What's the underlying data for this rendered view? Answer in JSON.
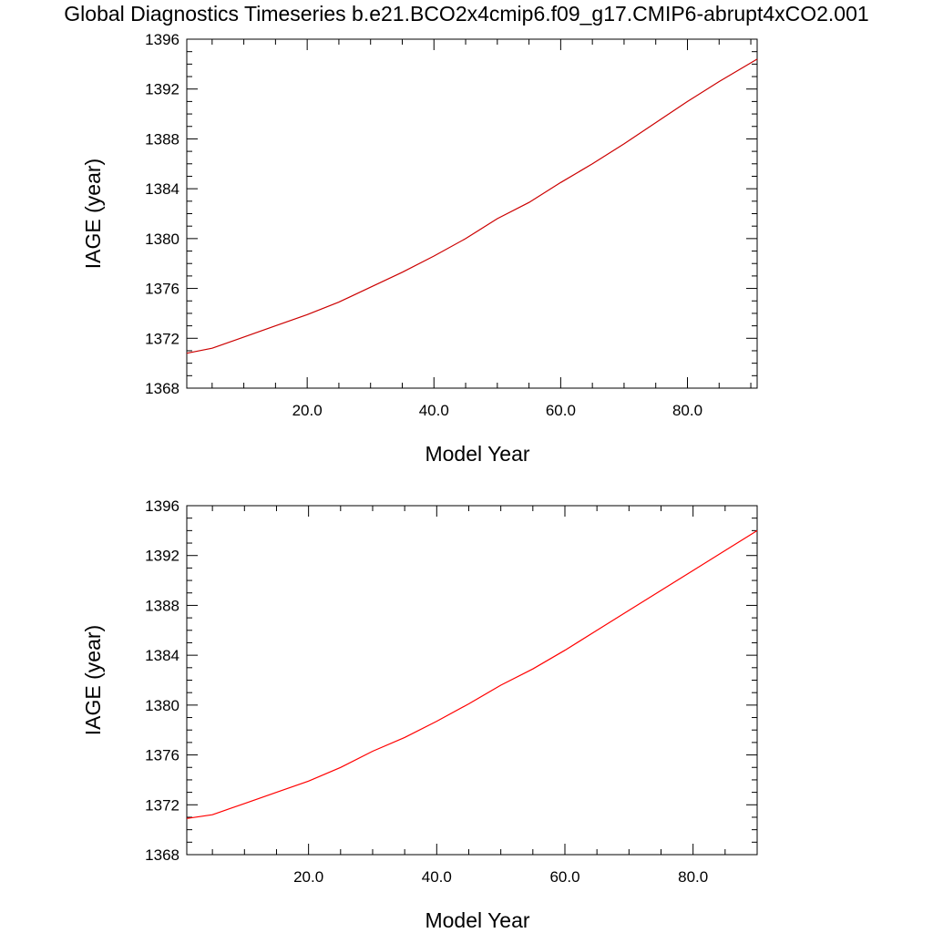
{
  "figure": {
    "title": "Global Diagnostics Timeseries b.e21.BCO2x4cmip6.f09_g17.CMIP6-abrupt4xCO2.001"
  },
  "chart_data": [
    {
      "type": "line",
      "xlabel": "Model Year",
      "ylabel": "IAGE (year)",
      "xlim": [
        1,
        91
      ],
      "ylim": [
        1368,
        1396
      ],
      "xticks": [
        20,
        40,
        60,
        80
      ],
      "xtick_labels": [
        "20.0",
        "40.0",
        "60.0",
        "80.0"
      ],
      "yticks": [
        1368,
        1372,
        1376,
        1380,
        1384,
        1388,
        1392,
        1396
      ],
      "ytick_labels": [
        "1368",
        "1372",
        "1376",
        "1380",
        "1384",
        "1388",
        "1392",
        "1396"
      ],
      "grid": false,
      "series": [
        {
          "color": "#cc0000",
          "x": [
            1,
            5,
            10,
            15,
            20,
            25,
            30,
            35,
            40,
            45,
            50,
            55,
            60,
            65,
            70,
            75,
            80,
            85,
            91
          ],
          "y": [
            1370.8,
            1371.2,
            1372.1,
            1373.0,
            1373.9,
            1374.9,
            1376.1,
            1377.3,
            1378.6,
            1380.0,
            1381.6,
            1382.9,
            1384.5,
            1386.0,
            1387.6,
            1389.3,
            1391.0,
            1392.6,
            1394.4
          ]
        }
      ]
    },
    {
      "type": "line",
      "xlabel": "Model Year",
      "ylabel": "IAGE (year)",
      "xlim": [
        1,
        90
      ],
      "ylim": [
        1368,
        1396
      ],
      "xticks": [
        20,
        40,
        60,
        80
      ],
      "xtick_labels": [
        "20.0",
        "40.0",
        "60.0",
        "80.0"
      ],
      "yticks": [
        1368,
        1372,
        1376,
        1380,
        1384,
        1388,
        1392,
        1396
      ],
      "ytick_labels": [
        "1368",
        "1372",
        "1376",
        "1380",
        "1384",
        "1388",
        "1392",
        "1396"
      ],
      "grid": false,
      "series": [
        {
          "color": "#ff0000",
          "x": [
            1,
            5,
            10,
            15,
            20,
            25,
            30,
            35,
            40,
            45,
            50,
            55,
            60,
            65,
            70,
            75,
            80,
            85,
            90
          ],
          "y": [
            1370.9,
            1371.2,
            1372.1,
            1373.0,
            1373.9,
            1375.0,
            1376.3,
            1377.4,
            1378.7,
            1380.1,
            1381.6,
            1382.9,
            1384.4,
            1386.0,
            1387.6,
            1389.2,
            1390.8,
            1392.4,
            1394.0
          ]
        }
      ]
    }
  ]
}
